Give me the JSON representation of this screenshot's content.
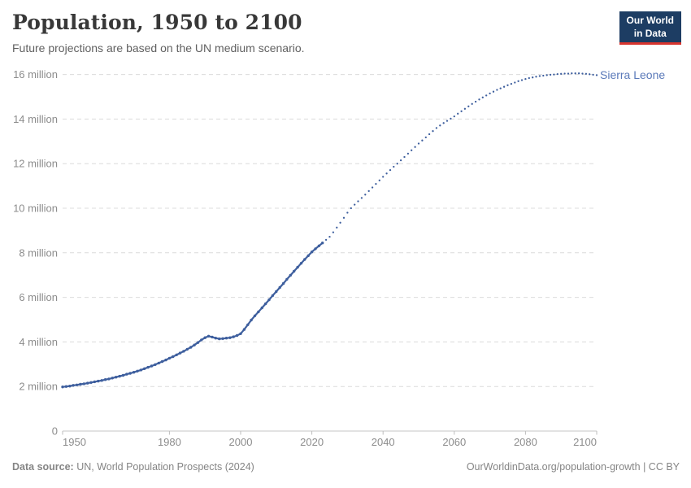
{
  "header": {
    "title": "Population, 1950 to 2100",
    "subtitle": "Future projections are based on the UN medium scenario.",
    "logo": {
      "line1": "Our World",
      "line2": "in Data",
      "bg_color": "#1d3d63",
      "bar_color": "#d8352f"
    }
  },
  "chart_data": {
    "type": "line",
    "title": "Population, 1950 to 2100",
    "subtitle": "Future projections are based on the UN medium scenario.",
    "entity": "Sierra Leone",
    "series_label": "Sierra Leone",
    "unit": "people (millions)",
    "color": "#3e5f9e",
    "label_color": "#5a79b9",
    "grid": "dashed-horizontal",
    "legend_position": "end-of-line-label",
    "xlim": [
      1950,
      2100
    ],
    "ylim": [
      0,
      16
    ],
    "x_ticks": [
      1950,
      1980,
      2000,
      2020,
      2040,
      2060,
      2080,
      2100
    ],
    "y_ticks": [
      {
        "value": 0,
        "label": "0"
      },
      {
        "value": 2,
        "label": "2 million"
      },
      {
        "value": 4,
        "label": "4 million"
      },
      {
        "value": 6,
        "label": "6 million"
      },
      {
        "value": 8,
        "label": "8 million"
      },
      {
        "value": 10,
        "label": "10 million"
      },
      {
        "value": 12,
        "label": "12 million"
      },
      {
        "value": 14,
        "label": "14 million"
      },
      {
        "value": 16,
        "label": "16 million"
      }
    ],
    "series": [
      {
        "name": "Sierra Leone (historical estimates)",
        "style": "solid-with-markers",
        "points": [
          [
            1950,
            1.98
          ],
          [
            1951,
            2.0
          ],
          [
            1952,
            2.02
          ],
          [
            1953,
            2.05
          ],
          [
            1954,
            2.07
          ],
          [
            1955,
            2.1
          ],
          [
            1956,
            2.12
          ],
          [
            1957,
            2.15
          ],
          [
            1958,
            2.18
          ],
          [
            1959,
            2.21
          ],
          [
            1960,
            2.24
          ],
          [
            1961,
            2.27
          ],
          [
            1962,
            2.31
          ],
          [
            1963,
            2.34
          ],
          [
            1964,
            2.38
          ],
          [
            1965,
            2.42
          ],
          [
            1966,
            2.46
          ],
          [
            1967,
            2.5
          ],
          [
            1968,
            2.55
          ],
          [
            1969,
            2.59
          ],
          [
            1970,
            2.64
          ],
          [
            1971,
            2.69
          ],
          [
            1972,
            2.74
          ],
          [
            1973,
            2.8
          ],
          [
            1974,
            2.86
          ],
          [
            1975,
            2.92
          ],
          [
            1976,
            2.98
          ],
          [
            1977,
            3.05
          ],
          [
            1978,
            3.12
          ],
          [
            1979,
            3.19
          ],
          [
            1980,
            3.27
          ],
          [
            1981,
            3.34
          ],
          [
            1982,
            3.42
          ],
          [
            1983,
            3.5
          ],
          [
            1984,
            3.58
          ],
          [
            1985,
            3.67
          ],
          [
            1986,
            3.76
          ],
          [
            1987,
            3.86
          ],
          [
            1988,
            3.97
          ],
          [
            1989,
            4.09
          ],
          [
            1990,
            4.19
          ],
          [
            1991,
            4.26
          ],
          [
            1992,
            4.22
          ],
          [
            1993,
            4.17
          ],
          [
            1994,
            4.14
          ],
          [
            1995,
            4.15
          ],
          [
            1996,
            4.17
          ],
          [
            1997,
            4.19
          ],
          [
            1998,
            4.23
          ],
          [
            1999,
            4.29
          ],
          [
            2000,
            4.37
          ],
          [
            2001,
            4.56
          ],
          [
            2002,
            4.77
          ],
          [
            2003,
            4.98
          ],
          [
            2004,
            5.17
          ],
          [
            2005,
            5.35
          ],
          [
            2006,
            5.53
          ],
          [
            2007,
            5.71
          ],
          [
            2008,
            5.89
          ],
          [
            2009,
            6.08
          ],
          [
            2010,
            6.26
          ],
          [
            2011,
            6.44
          ],
          [
            2012,
            6.62
          ],
          [
            2013,
            6.81
          ],
          [
            2014,
            6.99
          ],
          [
            2015,
            7.17
          ],
          [
            2016,
            7.35
          ],
          [
            2017,
            7.53
          ],
          [
            2018,
            7.7
          ],
          [
            2019,
            7.87
          ],
          [
            2020,
            8.04
          ],
          [
            2021,
            8.18
          ],
          [
            2022,
            8.31
          ],
          [
            2023,
            8.44
          ]
        ]
      },
      {
        "name": "Sierra Leone (UN medium projection)",
        "style": "dotted",
        "points": [
          [
            2023,
            8.44
          ],
          [
            2024,
            8.58
          ],
          [
            2025,
            8.72
          ],
          [
            2026,
            8.92
          ],
          [
            2027,
            9.13
          ],
          [
            2028,
            9.35
          ],
          [
            2029,
            9.57
          ],
          [
            2030,
            9.8
          ],
          [
            2031,
            10.0
          ],
          [
            2032,
            10.16
          ],
          [
            2033,
            10.31
          ],
          [
            2034,
            10.46
          ],
          [
            2035,
            10.61
          ],
          [
            2036,
            10.77
          ],
          [
            2037,
            10.93
          ],
          [
            2038,
            11.09
          ],
          [
            2039,
            11.25
          ],
          [
            2040,
            11.41
          ],
          [
            2041,
            11.56
          ],
          [
            2042,
            11.71
          ],
          [
            2043,
            11.86
          ],
          [
            2044,
            12.0
          ],
          [
            2045,
            12.15
          ],
          [
            2046,
            12.3
          ],
          [
            2047,
            12.45
          ],
          [
            2048,
            12.6
          ],
          [
            2049,
            12.75
          ],
          [
            2050,
            12.9
          ],
          [
            2051,
            13.04
          ],
          [
            2052,
            13.18
          ],
          [
            2053,
            13.32
          ],
          [
            2054,
            13.46
          ],
          [
            2055,
            13.6
          ],
          [
            2056,
            13.71
          ],
          [
            2057,
            13.82
          ],
          [
            2058,
            13.92
          ],
          [
            2059,
            14.02
          ],
          [
            2060,
            14.12
          ],
          [
            2061,
            14.24
          ],
          [
            2062,
            14.35
          ],
          [
            2063,
            14.46
          ],
          [
            2064,
            14.57
          ],
          [
            2065,
            14.68
          ],
          [
            2066,
            14.78
          ],
          [
            2067,
            14.88
          ],
          [
            2068,
            14.97
          ],
          [
            2069,
            15.06
          ],
          [
            2070,
            15.15
          ],
          [
            2071,
            15.23
          ],
          [
            2072,
            15.31
          ],
          [
            2073,
            15.38
          ],
          [
            2074,
            15.45
          ],
          [
            2075,
            15.52
          ],
          [
            2076,
            15.58
          ],
          [
            2077,
            15.64
          ],
          [
            2078,
            15.7
          ],
          [
            2079,
            15.75
          ],
          [
            2080,
            15.8
          ],
          [
            2081,
            15.84
          ],
          [
            2082,
            15.87
          ],
          [
            2083,
            15.9
          ],
          [
            2084,
            15.93
          ],
          [
            2085,
            15.95
          ],
          [
            2086,
            15.97
          ],
          [
            2087,
            15.99
          ],
          [
            2088,
            16.0
          ],
          [
            2089,
            16.02
          ],
          [
            2090,
            16.03
          ],
          [
            2091,
            16.04
          ],
          [
            2092,
            16.04
          ],
          [
            2093,
            16.05
          ],
          [
            2094,
            16.05
          ],
          [
            2095,
            16.05
          ],
          [
            2096,
            16.04
          ],
          [
            2097,
            16.03
          ],
          [
            2098,
            16.01
          ],
          [
            2099,
            15.99
          ],
          [
            2100,
            15.97
          ]
        ]
      }
    ]
  },
  "footer": {
    "source_label": "Data source:",
    "source_text": " UN, World Population Prospects (2024)",
    "license_text": "OurWorldinData.org/population-growth | CC BY"
  }
}
